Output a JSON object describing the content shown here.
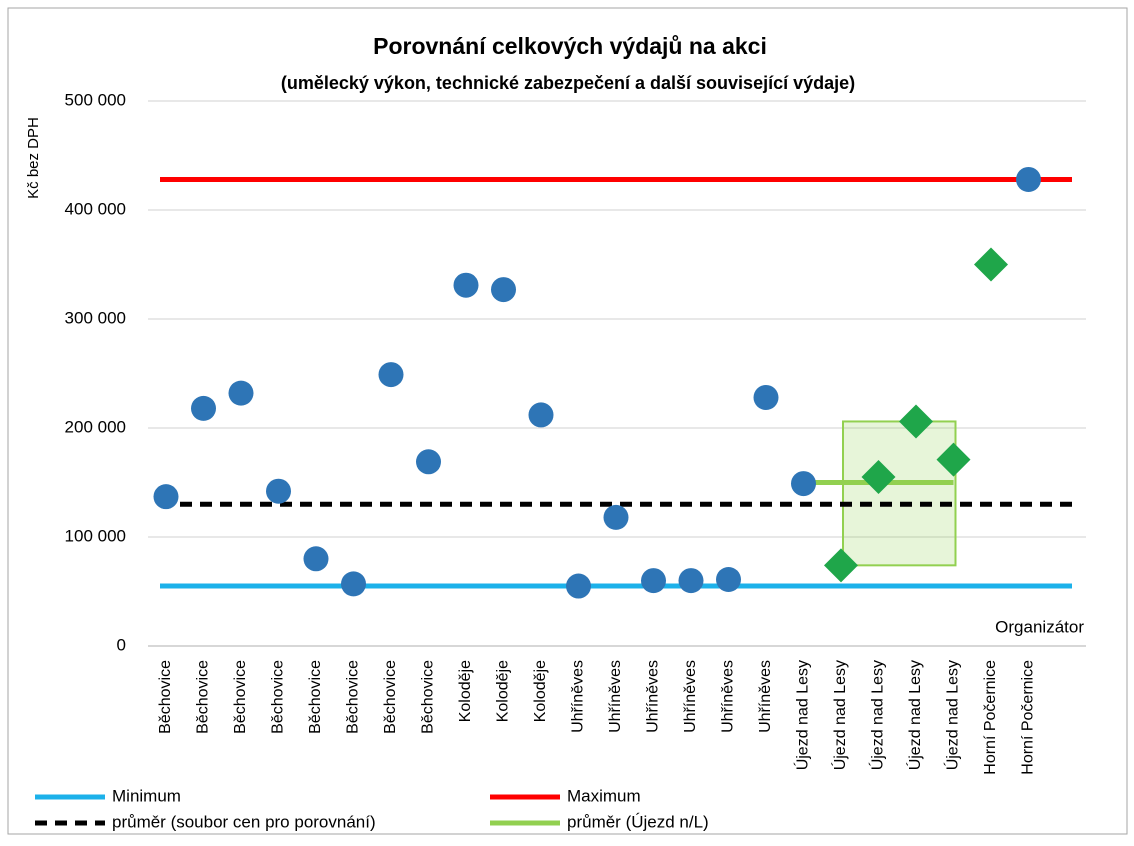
{
  "chart_data": {
    "type": "scatter",
    "title": "Porovnání celkových výdajů na akci",
    "subtitle": "(umělecký výkon, technické zabezpečení a další související výdaje)",
    "y_label": "Kč bez DPH",
    "x_label": "Organizátor",
    "categories": [
      "Běchovice",
      "Běchovice",
      "Běchovice",
      "Běchovice",
      "Běchovice",
      "Běchovice",
      "Běchovice",
      "Běchovice",
      "Koloděje",
      "Koloděje",
      "Koloděje",
      "Uhříněves",
      "Uhříněves",
      "Uhříněves",
      "Uhříněves",
      "Uhříněves",
      "Uhříněves",
      "Újezd nad Lesy",
      "Újezd nad Lesy",
      "Újezd nad Lesy",
      "Újezd nad Lesy",
      "Újezd nad Lesy",
      "Horní Počernice",
      "Horní Počernice"
    ],
    "series": [
      {
        "marker": "circle",
        "color": "#2e75b6",
        "values": [
          137000,
          218000,
          232000,
          142000,
          80000,
          57000,
          249000,
          169000,
          331000,
          327000,
          212000,
          55000,
          118000,
          60000,
          60000,
          61000,
          228000,
          149000,
          null,
          null,
          null,
          null,
          null,
          428000
        ]
      },
      {
        "marker": "diamond",
        "color": "#1fa64a",
        "values": [
          null,
          null,
          null,
          null,
          null,
          null,
          null,
          null,
          null,
          null,
          null,
          null,
          null,
          null,
          null,
          null,
          null,
          null,
          74000,
          155000,
          206000,
          171000,
          350000,
          null
        ]
      },
      {
        "name": "průměr (Újezd n/L)",
        "marker": "line",
        "color": "#92d050",
        "values": [
          null,
          null,
          null,
          null,
          null,
          null,
          null,
          null,
          null,
          null,
          null,
          null,
          null,
          null,
          null,
          null,
          null,
          150000,
          150000,
          150000,
          150000,
          150000,
          null,
          null
        ]
      }
    ],
    "reference_lines": [
      {
        "name": "Minimum",
        "value": 55000,
        "color": "#1cb1ea"
      },
      {
        "name": "Maximum",
        "value": 428000,
        "color": "#ff0000"
      },
      {
        "name": "průměr (soubor cen pro porovnání)",
        "value": 130000,
        "color": "#000000",
        "dashed": true
      }
    ],
    "ylim": [
      0,
      500000
    ],
    "yticks": [
      0,
      {
        "value": 100000,
        "label": "100 000"
      },
      {
        "value": 200000,
        "label": "200 000"
      },
      {
        "value": 300000,
        "label": "300 000"
      },
      {
        "value": 400000,
        "label": "400 000"
      },
      {
        "value": 500000,
        "label": "500 000"
      }
    ],
    "grid": true
  }
}
